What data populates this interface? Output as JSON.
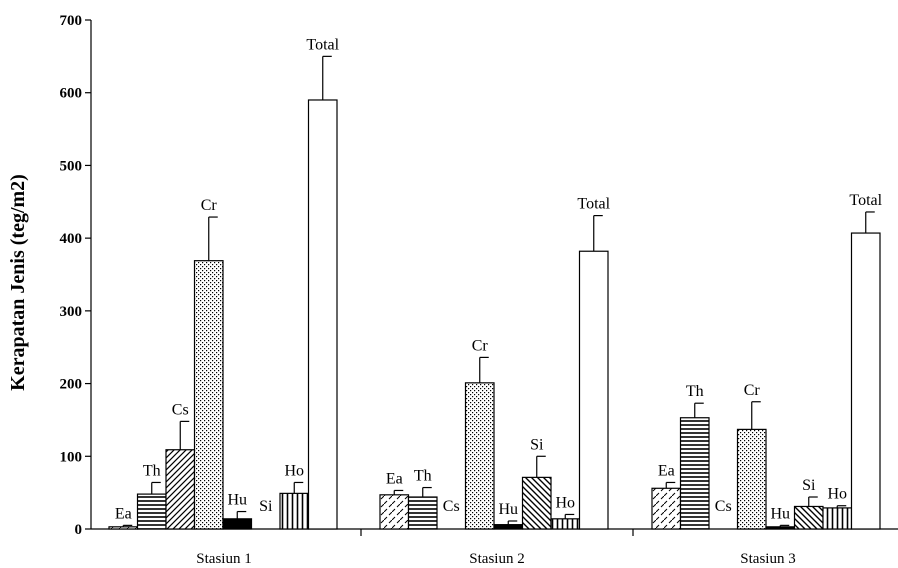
{
  "chart_data": {
    "type": "bar",
    "ylabel": "Kerapatan  Jenis (teg/m2)",
    "xlabel": "",
    "ylim": [
      0,
      700
    ],
    "yticks": [
      0,
      100,
      200,
      300,
      400,
      500,
      600,
      700
    ],
    "grid": false,
    "categories": [
      "Stasiun 1",
      "Stasiun 2",
      "Stasiun 3"
    ],
    "series": [
      {
        "name": "Ea",
        "pattern": "diagonal-dash",
        "values": [
          3,
          47,
          56
        ],
        "errors": [
          2,
          6,
          8
        ]
      },
      {
        "name": "Th",
        "pattern": "horizontal",
        "values": [
          48,
          44,
          153
        ],
        "errors": [
          16,
          13,
          20
        ]
      },
      {
        "name": "Cs",
        "pattern": "diagonal",
        "values": [
          109,
          0,
          0
        ],
        "errors": [
          39,
          0,
          0
        ]
      },
      {
        "name": "Cr",
        "pattern": "dots",
        "values": [
          369,
          201,
          137
        ],
        "errors": [
          60,
          35,
          38
        ]
      },
      {
        "name": "Hu",
        "pattern": "solid-black",
        "values": [
          14,
          6,
          3
        ],
        "errors": [
          10,
          5,
          2
        ]
      },
      {
        "name": "Si",
        "pattern": "diagonal-back",
        "values": [
          0,
          71,
          31
        ],
        "errors": [
          0,
          29,
          13
        ]
      },
      {
        "name": "Ho",
        "pattern": "vertical",
        "values": [
          49,
          14,
          29
        ],
        "errors": [
          15,
          6,
          3
        ]
      },
      {
        "name": "Total",
        "pattern": "white",
        "values": [
          590,
          382,
          407
        ],
        "errors": [
          60,
          49,
          29
        ]
      }
    ]
  }
}
